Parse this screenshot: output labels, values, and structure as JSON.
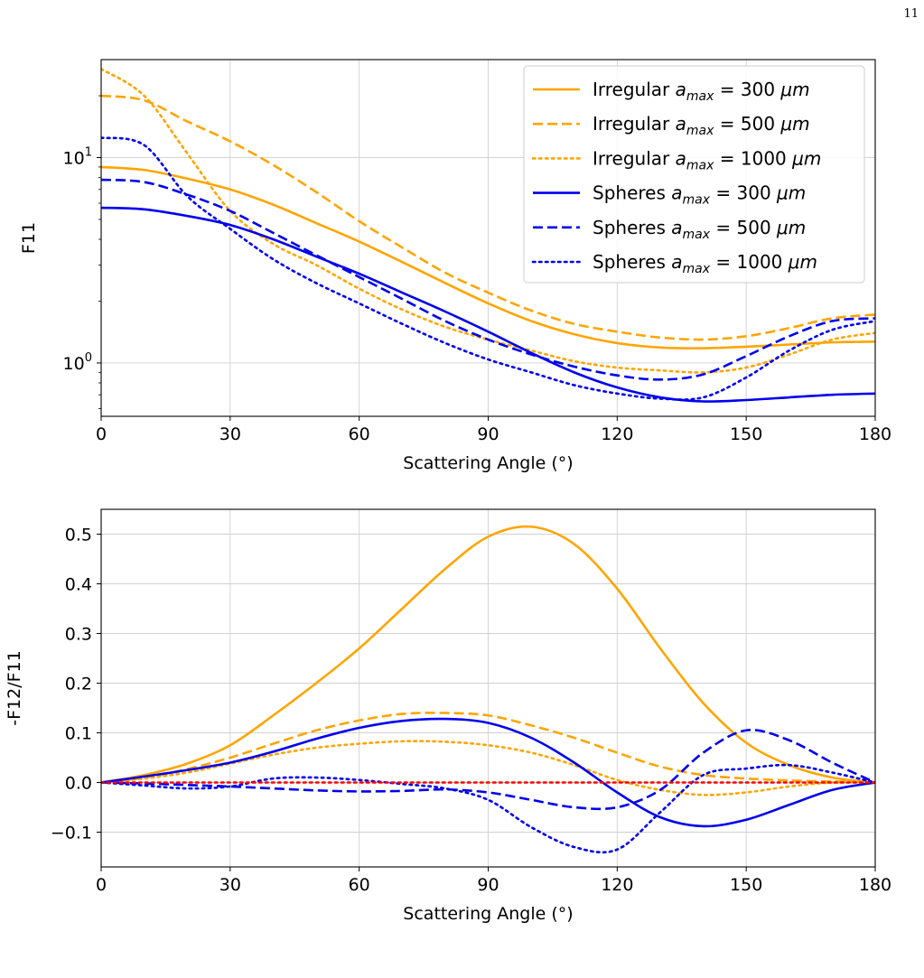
{
  "page_number": "11",
  "chart_data": [
    {
      "type": "line",
      "title": "",
      "xlabel": "Scattering Angle (°)",
      "ylabel": "F11",
      "xlim": [
        0,
        180
      ],
      "ylim": [
        0.55,
        30
      ],
      "yscale": "log",
      "grid": true,
      "legend_position": "upper-right",
      "x_ticks": [
        0,
        30,
        60,
        90,
        120,
        150,
        180
      ],
      "y_ticks": [
        {
          "value": 1,
          "base": "10",
          "exp": "0"
        },
        {
          "value": 10,
          "base": "10",
          "exp": "1"
        }
      ],
      "x": [
        0,
        10,
        20,
        30,
        40,
        50,
        60,
        70,
        80,
        90,
        100,
        110,
        120,
        130,
        140,
        150,
        160,
        170,
        180
      ],
      "series": [
        {
          "name_prefix": "Irregular",
          "name_value": "300",
          "color": "#ffa500",
          "dash": "solid",
          "values": [
            9.0,
            8.7,
            7.9,
            7.0,
            5.9,
            4.8,
            3.9,
            3.1,
            2.45,
            1.95,
            1.6,
            1.38,
            1.25,
            1.19,
            1.18,
            1.2,
            1.23,
            1.26,
            1.27
          ]
        },
        {
          "name_prefix": "Irregular",
          "name_value": "500",
          "color": "#ffa500",
          "dash": "dashed",
          "values": [
            20,
            19,
            15,
            12,
            9.2,
            6.8,
            4.9,
            3.65,
            2.75,
            2.2,
            1.8,
            1.55,
            1.42,
            1.33,
            1.3,
            1.35,
            1.48,
            1.65,
            1.72
          ]
        },
        {
          "name_prefix": "Irregular",
          "name_value": "1000",
          "color": "#ffa500",
          "dash": "dotted",
          "values": [
            27,
            20,
            10.5,
            5.5,
            3.8,
            3.0,
            2.3,
            1.82,
            1.5,
            1.3,
            1.15,
            1.02,
            0.95,
            0.92,
            0.9,
            0.95,
            1.1,
            1.3,
            1.4
          ]
        },
        {
          "name_prefix": "Spheres",
          "name_value": "300",
          "color": "#0000ee",
          "dash": "solid",
          "values": [
            5.7,
            5.6,
            5.2,
            4.7,
            4.0,
            3.3,
            2.72,
            2.2,
            1.78,
            1.42,
            1.12,
            0.9,
            0.76,
            0.68,
            0.65,
            0.66,
            0.68,
            0.7,
            0.71
          ]
        },
        {
          "name_prefix": "Spheres",
          "name_value": "500",
          "color": "#0000ee",
          "dash": "dashed",
          "values": [
            7.8,
            7.6,
            6.6,
            5.5,
            4.3,
            3.35,
            2.62,
            2.05,
            1.6,
            1.3,
            1.1,
            0.96,
            0.87,
            0.83,
            0.88,
            1.08,
            1.35,
            1.6,
            1.65
          ]
        },
        {
          "name_prefix": "Spheres",
          "name_value": "1000",
          "color": "#0000ee",
          "dash": "dotted",
          "values": [
            12.5,
            11.5,
            6.5,
            4.5,
            3.2,
            2.45,
            1.95,
            1.55,
            1.25,
            1.04,
            0.9,
            0.78,
            0.71,
            0.67,
            0.68,
            0.85,
            1.15,
            1.45,
            1.6
          ]
        }
      ],
      "legend_symbol": "a",
      "legend_subscript": "max",
      "legend_unit": "μm"
    },
    {
      "type": "line",
      "title": "",
      "xlabel": "Scattering Angle (°)",
      "ylabel": "-F12/F11",
      "xlim": [
        0,
        180
      ],
      "ylim": [
        -0.17,
        0.55
      ],
      "yscale": "linear",
      "grid": true,
      "x_ticks": [
        0,
        30,
        60,
        90,
        120,
        150,
        180
      ],
      "y_ticks": [
        -0.1,
        0.0,
        0.1,
        0.2,
        0.3,
        0.4,
        0.5
      ],
      "y_tick_labels": [
        "−0.1",
        "0.0",
        "0.1",
        "0.2",
        "0.3",
        "0.4",
        "0.5"
      ],
      "x": [
        0,
        10,
        20,
        30,
        40,
        50,
        60,
        70,
        80,
        90,
        100,
        110,
        120,
        130,
        140,
        150,
        160,
        170,
        180
      ],
      "series": [
        {
          "color": "#ffa500",
          "dash": "solid",
          "values": [
            0.0,
            0.015,
            0.038,
            0.075,
            0.135,
            0.2,
            0.27,
            0.35,
            0.43,
            0.495,
            0.515,
            0.48,
            0.39,
            0.27,
            0.16,
            0.08,
            0.035,
            0.01,
            0.0
          ]
        },
        {
          "color": "#ffa500",
          "dash": "dashed",
          "values": [
            0.0,
            0.01,
            0.027,
            0.05,
            0.078,
            0.105,
            0.125,
            0.138,
            0.14,
            0.135,
            0.115,
            0.09,
            0.06,
            0.032,
            0.015,
            0.008,
            0.004,
            0.002,
            0.0
          ]
        },
        {
          "color": "#ffa500",
          "dash": "dotted",
          "values": [
            0.0,
            0.008,
            0.02,
            0.038,
            0.056,
            0.07,
            0.078,
            0.083,
            0.082,
            0.075,
            0.06,
            0.035,
            0.005,
            -0.015,
            -0.025,
            -0.02,
            -0.008,
            0.0,
            0.0
          ]
        },
        {
          "color": "#0000ee",
          "dash": "solid",
          "values": [
            0.0,
            0.012,
            0.025,
            0.04,
            0.062,
            0.088,
            0.11,
            0.124,
            0.128,
            0.12,
            0.09,
            0.04,
            -0.02,
            -0.07,
            -0.088,
            -0.075,
            -0.045,
            -0.015,
            0.0
          ]
        },
        {
          "color": "#0000ee",
          "dash": "dashed",
          "values": [
            0.0,
            -0.002,
            -0.005,
            -0.008,
            -0.012,
            -0.016,
            -0.018,
            -0.017,
            -0.014,
            -0.02,
            -0.035,
            -0.05,
            -0.05,
            -0.015,
            0.06,
            0.105,
            0.085,
            0.04,
            0.0
          ]
        },
        {
          "color": "#0000ee",
          "dash": "dotted",
          "values": [
            0.0,
            -0.006,
            -0.012,
            -0.008,
            0.008,
            0.01,
            0.005,
            -0.003,
            -0.012,
            -0.035,
            -0.09,
            -0.13,
            -0.135,
            -0.06,
            0.015,
            0.028,
            0.035,
            0.02,
            0.0
          ]
        },
        {
          "color": "#ff0000",
          "dash": "dotted",
          "values": [
            0.0,
            0.0,
            0.0,
            0.0,
            0.0,
            0.0,
            0.0,
            0.0,
            0.0,
            0.0,
            0.0,
            0.0,
            0.0,
            0.0,
            0.0,
            0.0,
            0.0,
            0.0,
            0.0
          ]
        }
      ]
    }
  ]
}
